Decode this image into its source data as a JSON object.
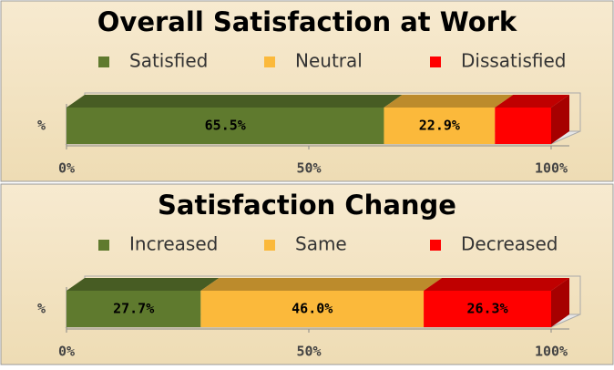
{
  "chart_data": [
    {
      "type": "bar",
      "orientation": "horizontal",
      "stacked": true,
      "title": "Overall Satisfaction at Work",
      "categories": [
        "%"
      ],
      "series": [
        {
          "name": "Satisfied",
          "color": "#5f7a2e",
          "values": [
            65.5
          ],
          "value_labels": [
            "65.5%"
          ]
        },
        {
          "name": "Neutral",
          "color": "#fbb93b",
          "values": [
            22.9
          ],
          "value_labels": [
            "22.9%"
          ]
        },
        {
          "name": "Dissatisfied",
          "color": "#ff0000",
          "values": [
            11.6
          ],
          "value_labels": [
            null
          ]
        }
      ],
      "xlim": [
        0,
        100
      ],
      "xticks": [
        {
          "value": 0,
          "label": "0%"
        },
        {
          "value": 50,
          "label": "50%"
        },
        {
          "value": 100,
          "label": "100%"
        }
      ],
      "legend": "top"
    },
    {
      "type": "bar",
      "orientation": "horizontal",
      "stacked": true,
      "title": "Satisfaction Change",
      "categories": [
        "%"
      ],
      "series": [
        {
          "name": "Increased",
          "color": "#5f7a2e",
          "values": [
            27.7
          ],
          "value_labels": [
            "27.7%"
          ]
        },
        {
          "name": "Same",
          "color": "#fbb93b",
          "values": [
            46.0
          ],
          "value_labels": [
            "46.0%"
          ]
        },
        {
          "name": "Decreased",
          "color": "#ff0000",
          "values": [
            26.3
          ],
          "value_labels": [
            "26.3%"
          ]
        }
      ],
      "xlim": [
        0,
        100
      ],
      "xticks": [
        {
          "value": 0,
          "label": "0%"
        },
        {
          "value": 50,
          "label": "50%"
        },
        {
          "value": 100,
          "label": "100%"
        }
      ],
      "legend": "top"
    }
  ]
}
